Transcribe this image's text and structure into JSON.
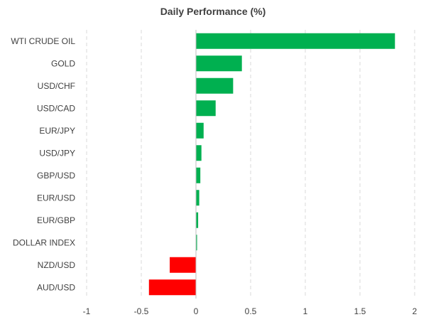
{
  "chart_data": {
    "type": "bar",
    "orientation": "horizontal",
    "title": "Daily Performance (%)",
    "xlabel": "",
    "ylabel": "",
    "xlim": [
      -1,
      2
    ],
    "ticks": [
      -1,
      -0.5,
      0,
      0.5,
      1,
      1.5,
      2
    ],
    "tick_labels": [
      "-1",
      "-0.5",
      "0",
      "0.5",
      "1",
      "1.5",
      "2"
    ],
    "grid": true,
    "categories": [
      "WTI CRUDE OIL",
      "GOLD",
      "USD/CHF",
      "USD/CAD",
      "EUR/JPY",
      "USD/JPY",
      "GBP/USD",
      "EUR/USD",
      "EUR/GBP",
      "DOLLAR INDEX",
      "NZD/USD",
      "AUD/USD"
    ],
    "values": [
      1.82,
      0.42,
      0.34,
      0.18,
      0.07,
      0.05,
      0.04,
      0.03,
      0.02,
      0.01,
      -0.24,
      -0.43
    ],
    "colors": {
      "positive": "#00b050",
      "negative": "#ff0000"
    }
  }
}
